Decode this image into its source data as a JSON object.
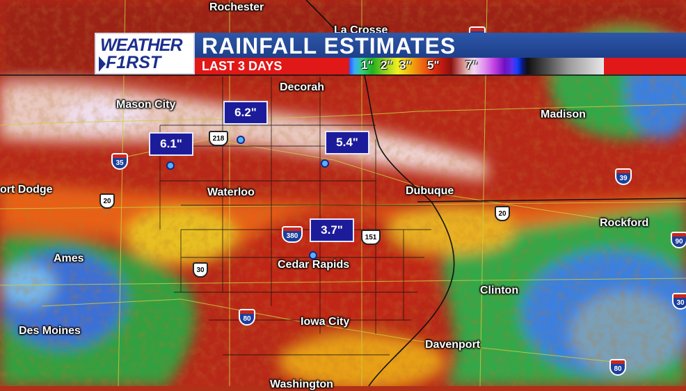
{
  "banner": {
    "logo_line1": "WEATHER",
    "logo_line2": "F1RST",
    "title": "RAINFALL ESTIMATES",
    "subtitle": "LAST 3 DAYS",
    "legend_ticks": [
      "1\"",
      "2\"",
      "3\"",
      "5\"",
      "7\""
    ]
  },
  "cities": [
    {
      "name": "Rochester"
    },
    {
      "name": "La Crosse"
    },
    {
      "name": "Decorah"
    },
    {
      "name": "Mason City"
    },
    {
      "name": "Madison"
    },
    {
      "name": "ort Dodge"
    },
    {
      "name": "Waterloo"
    },
    {
      "name": "Dubuque"
    },
    {
      "name": "Rockford"
    },
    {
      "name": "Ames"
    },
    {
      "name": "Cedar Rapids"
    },
    {
      "name": "Clinton"
    },
    {
      "name": "Des Moines"
    },
    {
      "name": "Iowa City"
    },
    {
      "name": "Davenport"
    },
    {
      "name": "Washington"
    }
  ],
  "rain_totals": [
    {
      "value": "6.2\""
    },
    {
      "value": "6.1\""
    },
    {
      "value": "5.4\""
    },
    {
      "value": "3.7\""
    }
  ],
  "interstates": [
    "90",
    "35",
    "39",
    "380",
    "80",
    "90",
    "30",
    "80"
  ],
  "us_highways": [
    "218",
    "20",
    "20",
    "151",
    "30"
  ]
}
